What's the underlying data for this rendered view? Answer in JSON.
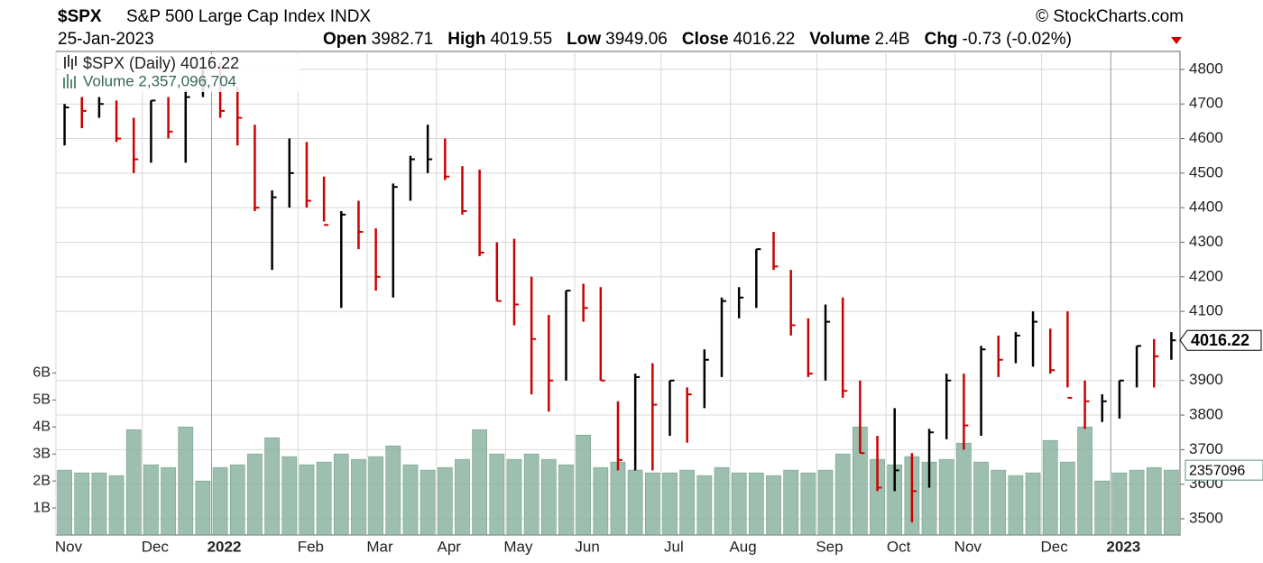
{
  "chart_data": {
    "type": "ohlc",
    "title": "$SPX",
    "subtitle": "S&P 500 Large Cap Index INDX",
    "source": "© StockCharts.com",
    "date": "25-Jan-2023",
    "quote": [
      {
        "label": "Open",
        "value": 3982.71
      },
      {
        "label": "High",
        "value": 4019.55
      },
      {
        "label": "Low",
        "value": 3949.06
      },
      {
        "label": "Close",
        "value": 4016.22
      },
      {
        "label": "Volume",
        "value": "2.4B"
      },
      {
        "label": "Chg",
        "value": "-0.73 (-0.02%)"
      }
    ],
    "price_legend": "$SPX (Daily) 4016.22",
    "volume_legend": "Volume 2,357,096,704",
    "last_close": 4016.22,
    "last_volume": "2357096",
    "categories": [
      "Nov",
      null,
      null,
      null,
      null,
      "Dec",
      null,
      null,
      null,
      "2022",
      null,
      null,
      null,
      null,
      "Feb",
      null,
      null,
      null,
      "Mar",
      null,
      null,
      null,
      "Apr",
      null,
      null,
      null,
      "May",
      null,
      null,
      null,
      "Jun",
      null,
      null,
      null,
      null,
      "Jul",
      null,
      null,
      null,
      "Aug",
      null,
      null,
      null,
      null,
      "Sep",
      null,
      null,
      null,
      "Oct",
      null,
      null,
      null,
      "Nov",
      null,
      null,
      null,
      null,
      "Dec",
      null,
      null,
      null,
      "2023",
      null,
      null,
      null
    ],
    "series": [
      {
        "up_color": "#000000",
        "down_color": "#cc0000",
        "high": [
          4700,
          4720,
          4720,
          4710,
          4660,
          4710,
          4720,
          4740,
          4800,
          4820,
          4750,
          4640,
          4450,
          4600,
          4590,
          4490,
          4390,
          4420,
          4340,
          4470,
          4550,
          4640,
          4600,
          4520,
          4510,
          4300,
          4310,
          4200,
          4090,
          4160,
          4180,
          4170,
          3840,
          3920,
          3950,
          3900,
          3880,
          3990,
          4140,
          4170,
          4280,
          4330,
          4220,
          4080,
          4120,
          4140,
          3900,
          3740,
          3820,
          3690,
          3760,
          3920,
          3920,
          4000,
          4030,
          4040,
          4100,
          4050,
          4100,
          3900,
          3860,
          3900,
          4000,
          4020,
          4040
        ],
        "low": [
          4580,
          4630,
          4660,
          4590,
          4500,
          4530,
          4600,
          4530,
          4720,
          4660,
          4580,
          4390,
          4220,
          4400,
          4400,
          4360,
          4110,
          4280,
          4160,
          4140,
          4420,
          4500,
          4480,
          4380,
          4260,
          4130,
          4060,
          3860,
          3810,
          3900,
          4070,
          3900,
          3640,
          3640,
          3640,
          3740,
          3720,
          3820,
          3910,
          4080,
          4110,
          4220,
          4030,
          3910,
          3900,
          3850,
          3690,
          3580,
          3580,
          3490,
          3590,
          3730,
          3700,
          3740,
          3910,
          3950,
          3940,
          3920,
          3880,
          3760,
          3780,
          3790,
          3880,
          3880,
          3960
        ],
        "close": [
          4690,
          4680,
          4700,
          4600,
          4540,
          4710,
          4620,
          4720,
          4770,
          4680,
          4660,
          4400,
          4430,
          4500,
          4420,
          4350,
          4380,
          4330,
          4200,
          4460,
          4540,
          4540,
          4490,
          4390,
          4270,
          4130,
          4120,
          4020,
          3900,
          4160,
          4110,
          3900,
          3670,
          3910,
          3830,
          3900,
          3860,
          3960,
          4130,
          4140,
          4280,
          4230,
          4060,
          3920,
          4070,
          3870,
          3690,
          3590,
          3640,
          3580,
          3750,
          3900,
          3770,
          3990,
          3960,
          4030,
          4070,
          3930,
          3850,
          3840,
          3840,
          3900,
          4000,
          3970,
          4016.22
        ]
      },
      {
        "color": "#8db4a2",
        "axis": "y2",
        "values": [
          2.4,
          2.3,
          2.3,
          2.2,
          3.9,
          2.6,
          2.5,
          4.0,
          2.0,
          2.5,
          2.6,
          3.0,
          3.6,
          2.9,
          2.6,
          2.7,
          3.0,
          2.8,
          2.9,
          3.3,
          2.6,
          2.4,
          2.5,
          2.8,
          3.9,
          3.0,
          2.8,
          3.0,
          2.8,
          2.6,
          3.7,
          2.5,
          2.7,
          2.4,
          2.3,
          2.3,
          2.4,
          2.2,
          2.5,
          2.3,
          2.3,
          2.2,
          2.4,
          2.3,
          2.4,
          3.0,
          4.0,
          2.8,
          2.6,
          2.9,
          2.7,
          2.8,
          3.4,
          2.7,
          2.4,
          2.2,
          2.3,
          3.5,
          2.7,
          4.0,
          2.0,
          2.3,
          2.4,
          2.5,
          2.4
        ]
      }
    ],
    "ylim": [
      3453,
      4852
    ],
    "yticks": [
      3500,
      3600,
      3700,
      3800,
      3900,
      4100,
      4200,
      4300,
      4400,
      4500,
      4600,
      4700,
      4800
    ],
    "y2lim": [
      0,
      17.9
    ],
    "y2ticks": [
      {
        "value": 1,
        "label": "1B"
      },
      {
        "value": 2,
        "label": "2B"
      },
      {
        "value": 3,
        "label": "3B"
      },
      {
        "value": 4,
        "label": "4B"
      },
      {
        "value": 5,
        "label": "5B"
      },
      {
        "value": 6,
        "label": "6B"
      }
    ],
    "grid": true
  }
}
